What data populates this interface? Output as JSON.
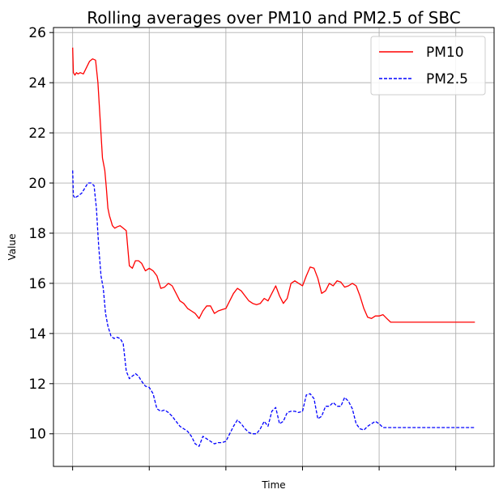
{
  "chart_data": {
    "type": "line",
    "title": "Rolling averages over PM10 and PM2.5 of SBC",
    "xlabel": "Time",
    "ylabel": "Value",
    "x_tick_labels": [
      "",
      "",
      "",
      "",
      "",
      ""
    ],
    "xlim": [
      -0.25,
      5.5
    ],
    "ylim": [
      8.7,
      26.2
    ],
    "y_ticks": [
      10,
      12,
      14,
      16,
      18,
      20,
      22,
      24,
      26
    ],
    "grid": true,
    "legend_position": "top-right",
    "series": [
      {
        "name": "PM10",
        "color": "#ff0000",
        "style": "solid",
        "x": [
          0,
          0.01,
          0.03,
          0.05,
          0.07,
          0.1,
          0.14,
          0.18,
          0.22,
          0.26,
          0.3,
          0.33,
          0.36,
          0.39,
          0.42,
          0.44,
          0.46,
          0.48,
          0.5,
          0.52,
          0.55,
          0.58,
          0.62,
          0.66,
          0.7,
          0.74,
          0.78,
          0.82,
          0.86,
          0.9,
          0.95,
          1.0,
          1.05,
          1.1,
          1.15,
          1.2,
          1.25,
          1.3,
          1.35,
          1.4,
          1.45,
          1.5,
          1.55,
          1.6,
          1.65,
          1.7,
          1.75,
          1.8,
          1.85,
          1.9,
          1.95,
          2.0,
          2.05,
          2.1,
          2.15,
          2.2,
          2.25,
          2.3,
          2.35,
          2.4,
          2.45,
          2.5,
          2.55,
          2.6,
          2.65,
          2.7,
          2.75,
          2.8,
          2.85,
          2.9,
          2.95,
          3.0,
          3.05,
          3.1,
          3.15,
          3.2,
          3.25,
          3.3,
          3.35,
          3.4,
          3.45,
          3.5,
          3.55,
          3.6,
          3.65,
          3.7,
          3.75,
          3.8,
          3.85,
          3.9,
          3.95,
          4.0,
          4.05,
          4.1,
          4.15,
          4.2,
          4.25,
          4.3,
          4.35,
          4.4,
          4.45,
          4.5,
          4.55,
          4.6,
          4.65,
          4.7,
          4.75,
          4.8,
          4.85,
          4.9,
          4.95,
          5.0,
          5.05,
          5.1,
          5.15,
          5.2,
          5.25
        ],
        "values": [
          25.4,
          24.4,
          24.3,
          24.4,
          24.35,
          24.4,
          24.35,
          24.6,
          24.85,
          24.95,
          24.9,
          24.0,
          22.5,
          21.0,
          20.5,
          19.8,
          19.0,
          18.7,
          18.5,
          18.3,
          18.2,
          18.25,
          18.3,
          18.2,
          18.1,
          16.7,
          16.6,
          16.9,
          16.9,
          16.8,
          16.5,
          16.6,
          16.5,
          16.3,
          15.8,
          15.85,
          16.0,
          15.9,
          15.6,
          15.3,
          15.2,
          15.0,
          14.9,
          14.8,
          14.6,
          14.9,
          15.1,
          15.1,
          14.8,
          14.9,
          14.95,
          15.0,
          15.3,
          15.6,
          15.8,
          15.7,
          15.5,
          15.3,
          15.2,
          15.15,
          15.2,
          15.4,
          15.3,
          15.6,
          15.9,
          15.5,
          15.2,
          15.4,
          16.0,
          16.1,
          16.0,
          15.9,
          16.3,
          16.65,
          16.6,
          16.2,
          15.6,
          15.7,
          16.0,
          15.9,
          16.1,
          16.05,
          15.85,
          15.9,
          16.0,
          15.9,
          15.5,
          15.0,
          14.65,
          14.6,
          14.7,
          14.7,
          14.75,
          14.6,
          14.45,
          14.45,
          14.45,
          14.45,
          14.45,
          14.45,
          14.45,
          14.45,
          14.45,
          14.45,
          14.45,
          14.45,
          14.45,
          14.45,
          14.45,
          14.45,
          14.45,
          14.45,
          14.45,
          14.45,
          14.45,
          14.45,
          14.45
        ]
      },
      {
        "name": "PM2.5",
        "color": "#0000ff",
        "style": "dashed",
        "x": [
          0,
          0.01,
          0.03,
          0.05,
          0.08,
          0.12,
          0.16,
          0.2,
          0.24,
          0.28,
          0.31,
          0.34,
          0.37,
          0.4,
          0.43,
          0.46,
          0.5,
          0.54,
          0.58,
          0.62,
          0.66,
          0.7,
          0.74,
          0.78,
          0.82,
          0.86,
          0.9,
          0.95,
          1.0,
          1.05,
          1.1,
          1.15,
          1.2,
          1.25,
          1.3,
          1.35,
          1.4,
          1.45,
          1.5,
          1.55,
          1.6,
          1.65,
          1.7,
          1.75,
          1.8,
          1.85,
          1.9,
          1.95,
          2.0,
          2.05,
          2.1,
          2.15,
          2.2,
          2.25,
          2.3,
          2.35,
          2.4,
          2.45,
          2.5,
          2.55,
          2.6,
          2.65,
          2.7,
          2.75,
          2.8,
          2.85,
          2.9,
          2.95,
          3.0,
          3.05,
          3.1,
          3.15,
          3.2,
          3.25,
          3.3,
          3.35,
          3.4,
          3.45,
          3.5,
          3.55,
          3.6,
          3.65,
          3.7,
          3.75,
          3.8,
          3.85,
          3.9,
          3.95,
          4.0,
          4.05,
          4.1,
          4.15,
          4.2,
          4.25,
          4.3,
          4.35,
          4.4,
          4.45,
          4.5,
          4.55,
          4.6,
          4.65,
          4.7,
          4.75,
          4.8,
          4.85,
          4.9,
          4.95,
          5.0,
          5.05,
          5.1,
          5.15,
          5.2,
          5.25
        ],
        "values": [
          20.5,
          19.5,
          19.4,
          19.45,
          19.5,
          19.6,
          19.8,
          20.0,
          20.0,
          19.9,
          19.0,
          17.5,
          16.3,
          15.8,
          14.8,
          14.3,
          13.9,
          13.8,
          13.85,
          13.8,
          13.6,
          12.5,
          12.2,
          12.3,
          12.4,
          12.3,
          12.1,
          11.9,
          11.85,
          11.6,
          11.0,
          10.9,
          10.95,
          10.85,
          10.7,
          10.5,
          10.3,
          10.2,
          10.1,
          9.9,
          9.6,
          9.5,
          9.9,
          9.8,
          9.7,
          9.6,
          9.65,
          9.65,
          9.7,
          10.0,
          10.3,
          10.55,
          10.4,
          10.2,
          10.05,
          10.0,
          10.0,
          10.2,
          10.5,
          10.3,
          10.9,
          11.05,
          10.4,
          10.5,
          10.85,
          10.9,
          10.9,
          10.85,
          10.9,
          11.55,
          11.6,
          11.4,
          10.6,
          10.7,
          11.1,
          11.1,
          11.25,
          11.1,
          11.1,
          11.45,
          11.3,
          11.0,
          10.4,
          10.2,
          10.15,
          10.3,
          10.4,
          10.5,
          10.4,
          10.25,
          10.25,
          10.25,
          10.25,
          10.25,
          10.25,
          10.25,
          10.25,
          10.25,
          10.25,
          10.25,
          10.25,
          10.25,
          10.25,
          10.25,
          10.25,
          10.25,
          10.25,
          10.25,
          10.25,
          10.25,
          10.25,
          10.25,
          10.25,
          10.25
        ]
      }
    ]
  }
}
